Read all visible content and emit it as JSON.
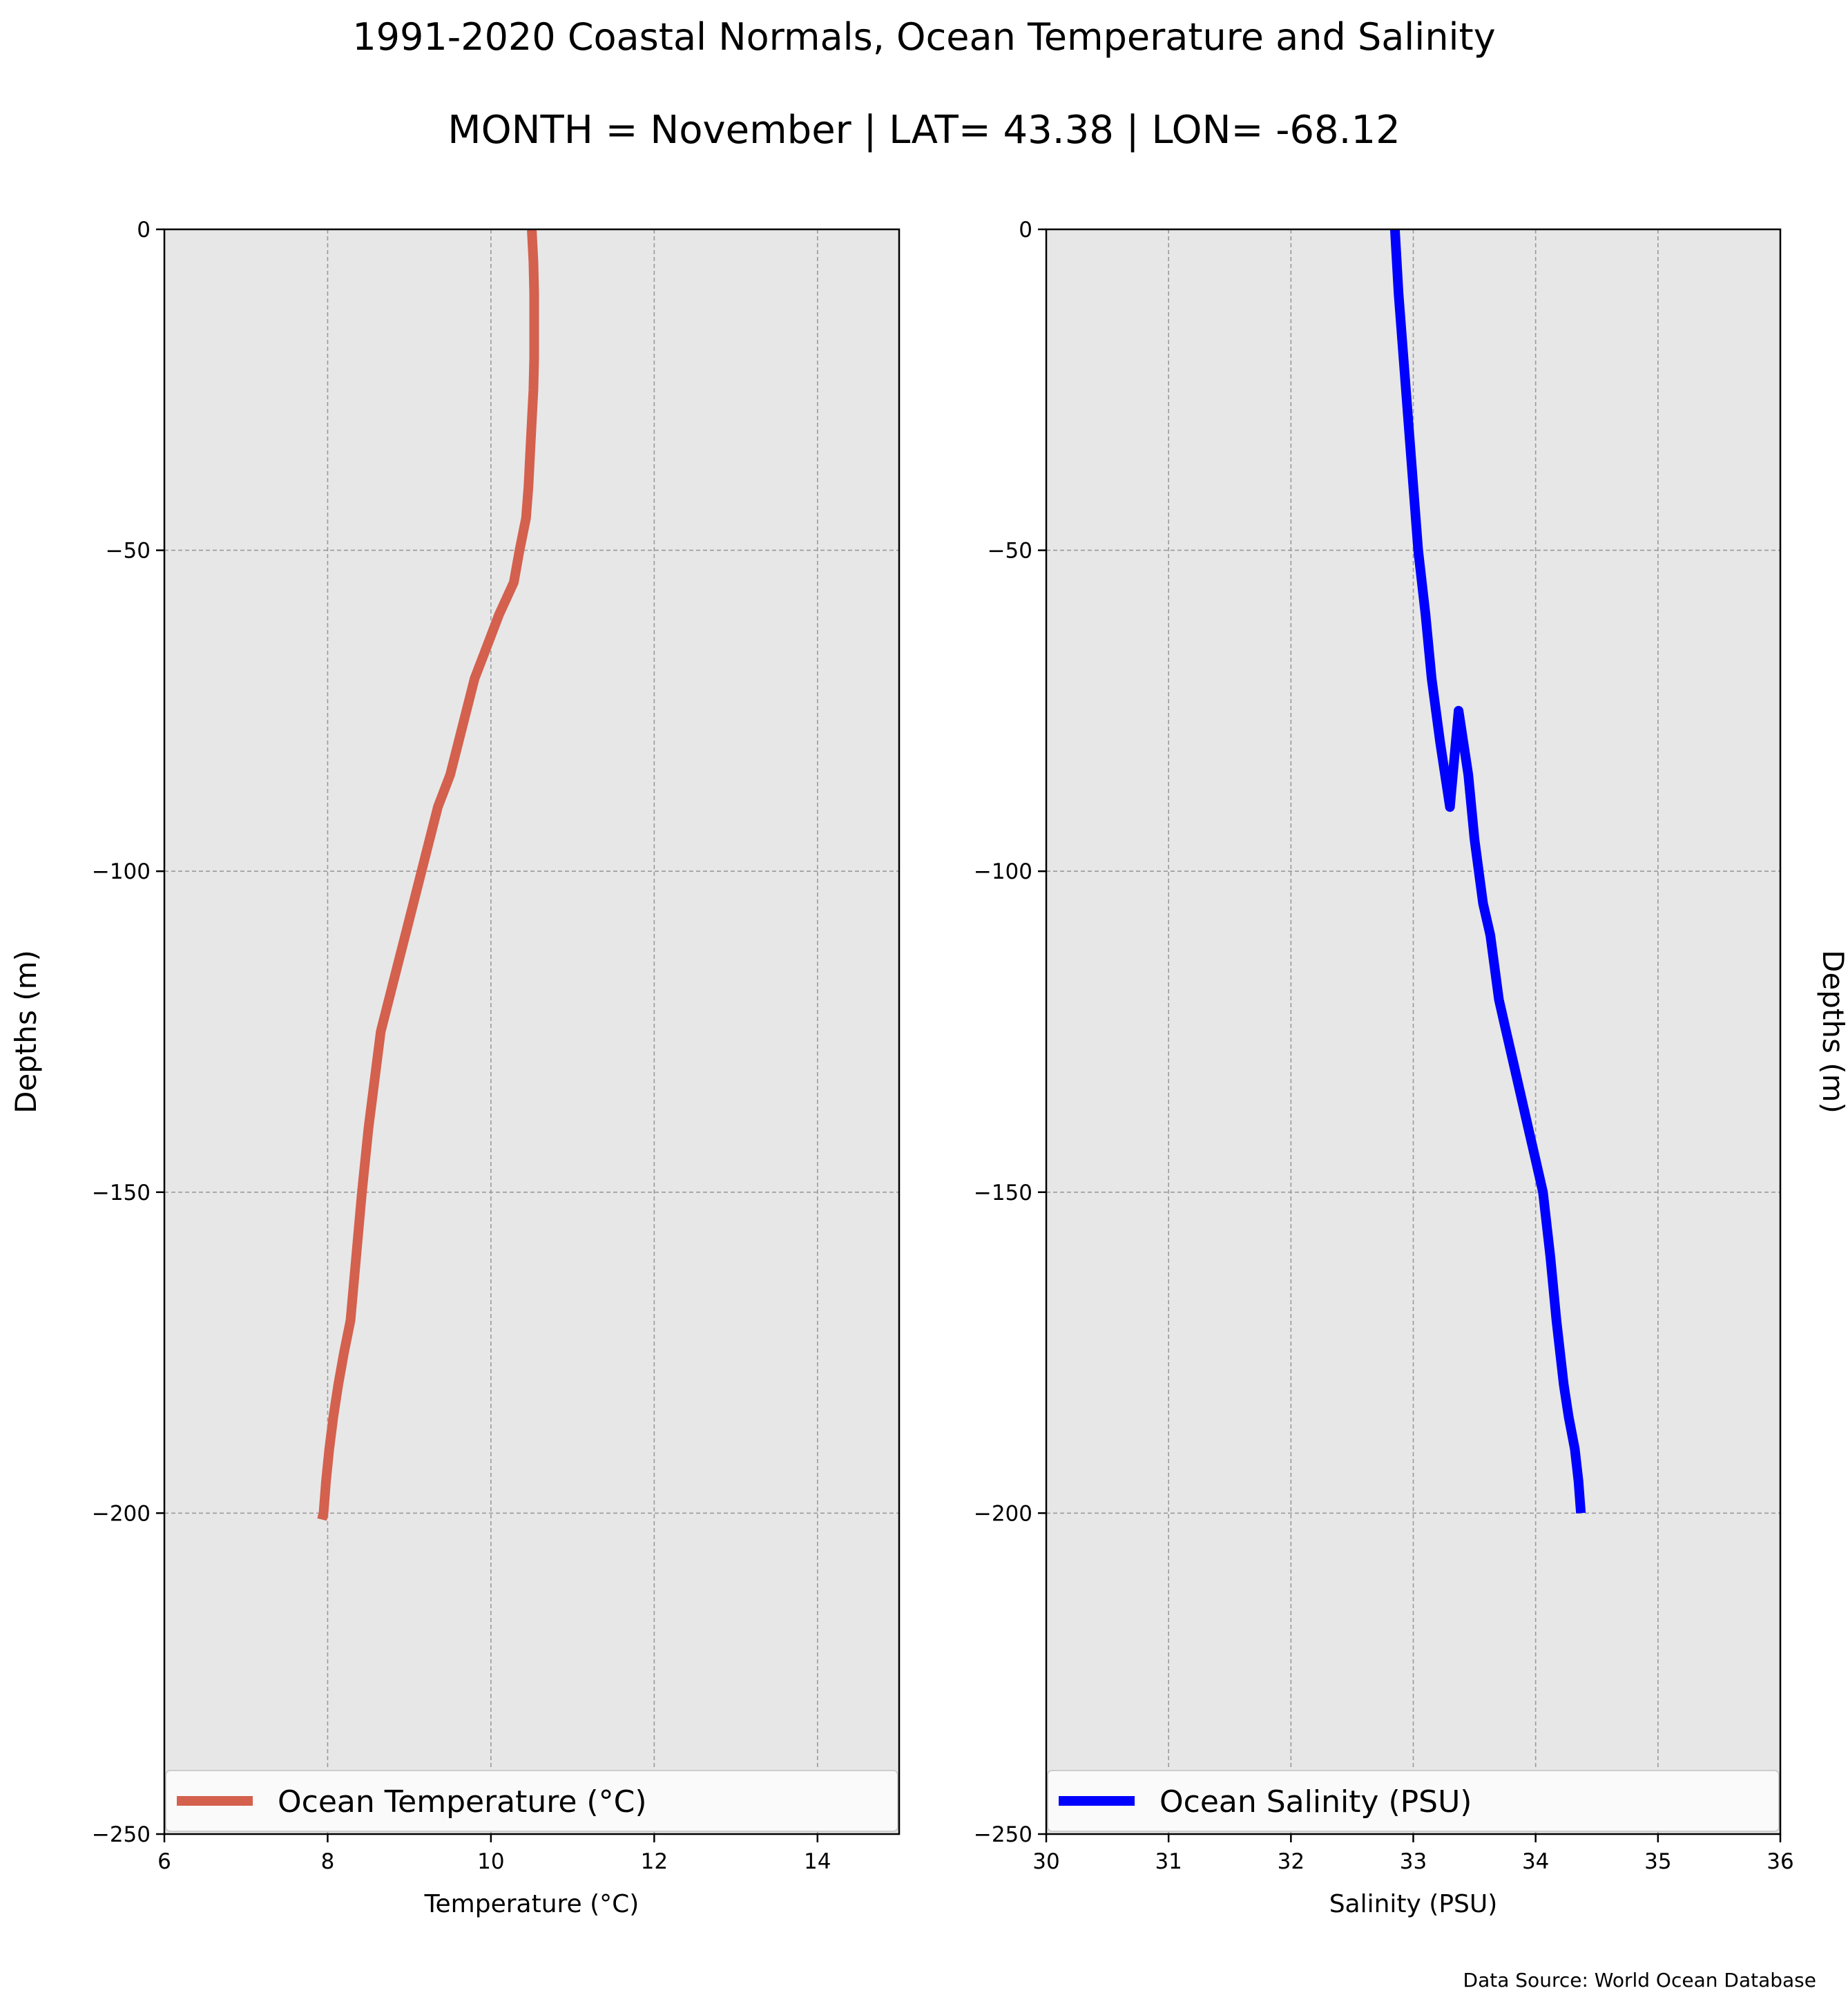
{
  "title": "1991-2020 Coastal Normals, Ocean Temperature and Salinity",
  "subtitle": "MONTH = November | LAT= 43.38 | LON= -68.12",
  "source": "Data Source: World Ocean Database",
  "chart_data": [
    {
      "type": "line",
      "xlabel": "Temperature (°C)",
      "ylabel": "Depths (m)",
      "xlim": [
        6,
        15
      ],
      "ylim": [
        -250,
        0
      ],
      "xticks": [
        "6",
        "8",
        "10",
        "12",
        "14"
      ],
      "yticks": [
        "0",
        "−50",
        "−100",
        "−150",
        "−200",
        "−250"
      ],
      "grid": true,
      "legend_position": "bottom",
      "series": [
        {
          "name": "Ocean Temperature (°C)",
          "color": "#d4604e",
          "x": [
            10.5,
            10.52,
            10.53,
            10.53,
            10.53,
            10.52,
            10.5,
            10.48,
            10.46,
            10.43,
            10.35,
            10.28,
            10.1,
            9.95,
            9.8,
            9.7,
            9.6,
            9.5,
            9.35,
            9.25,
            9.15,
            9.05,
            8.95,
            8.85,
            8.75,
            8.65,
            8.6,
            8.5,
            8.42,
            8.35,
            8.28,
            8.2,
            8.13,
            8.07,
            8.02,
            7.98,
            7.95,
            7.93
          ],
          "y": [
            0,
            -5,
            -10,
            -15,
            -20,
            -25,
            -30,
            -35,
            -40,
            -45,
            -50,
            -55,
            -60,
            -65,
            -70,
            -75,
            -80,
            -85,
            -90,
            -95,
            -100,
            -105,
            -110,
            -115,
            -120,
            -125,
            -130,
            -140,
            -150,
            -160,
            -170,
            -175,
            -180,
            -185,
            -190,
            -195,
            -200,
            -201
          ]
        }
      ]
    },
    {
      "type": "line",
      "xlabel": "Salinity (PSU)",
      "ylabel": "Depths (m)",
      "xlim": [
        30,
        36
      ],
      "ylim": [
        -250,
        0
      ],
      "xticks": [
        "30",
        "31",
        "32",
        "33",
        "34",
        "35",
        "36"
      ],
      "yticks": [
        "0",
        "−50",
        "−100",
        "−150",
        "−200",
        "−250"
      ],
      "grid": true,
      "legend_position": "bottom",
      "series": [
        {
          "name": "Ocean Salinity (PSU)",
          "color": "#0000ff",
          "x": [
            32.85,
            32.88,
            32.92,
            32.96,
            33.0,
            33.04,
            33.1,
            33.15,
            33.22,
            33.3,
            33.37,
            33.45,
            33.5,
            33.57,
            33.63,
            33.7,
            33.76,
            33.82,
            33.88,
            33.94,
            34.0,
            34.06,
            34.12,
            34.17,
            34.2,
            34.23,
            34.27,
            34.32,
            34.35,
            34.37
          ],
          "y": [
            0,
            -10,
            -20,
            -30,
            -40,
            -50,
            -60,
            -70,
            -80,
            -90,
            -75,
            -85,
            -95,
            -105,
            -110,
            -120,
            -125,
            -130,
            -135,
            -140,
            -145,
            -150,
            -160,
            -170,
            -175,
            -180,
            -185,
            -190,
            -195,
            -200
          ]
        }
      ]
    }
  ]
}
